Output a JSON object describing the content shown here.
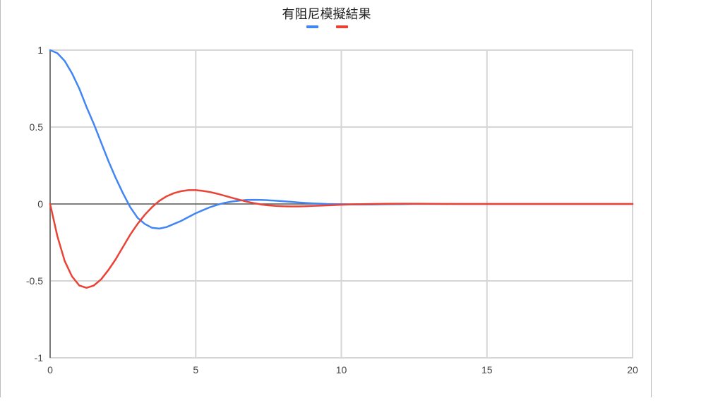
{
  "chart_data": {
    "type": "line",
    "title": "有阻尼模擬結果",
    "legend": "top-center",
    "grid": true,
    "xlim": [
      0,
      20
    ],
    "ylim": [
      -1,
      1
    ],
    "x_ticks": [
      "0",
      "5",
      "10",
      "15",
      "20"
    ],
    "y_ticks": [
      "1",
      "0.5",
      "0",
      "-0.5",
      "-1"
    ],
    "series": [
      {
        "color": "#4285f4",
        "x": [
          0,
          0.25,
          0.5,
          0.75,
          1,
          1.25,
          1.5,
          1.75,
          2,
          2.25,
          2.5,
          2.75,
          3,
          3.25,
          3.5,
          3.75,
          4,
          4.25,
          4.5,
          4.75,
          5,
          5.25,
          5.5,
          5.75,
          6,
          6.25,
          6.5,
          6.75,
          7,
          7.25,
          7.5,
          7.75,
          8,
          8.25,
          8.5,
          8.75,
          9,
          9.5,
          10,
          10.5,
          11,
          11.5,
          12,
          12.5,
          13,
          14,
          15,
          16,
          17,
          18,
          19,
          20
        ],
        "y": [
          1,
          0.98,
          0.93,
          0.85,
          0.75,
          0.63,
          0.52,
          0.4,
          0.28,
          0.17,
          0.07,
          -0.02,
          -0.09,
          -0.13,
          -0.155,
          -0.16,
          -0.15,
          -0.13,
          -0.11,
          -0.085,
          -0.06,
          -0.04,
          -0.02,
          -0.005,
          0.008,
          0.016,
          0.022,
          0.026,
          0.027,
          0.026,
          0.024,
          0.021,
          0.018,
          0.014,
          0.01,
          0.007,
          0.004,
          0,
          -0.002,
          -0.003,
          -0.003,
          -0.002,
          -0.001,
          0,
          0,
          0,
          0,
          0,
          0,
          0,
          0,
          0
        ]
      },
      {
        "color": "#ea4335",
        "x": [
          0,
          0.25,
          0.5,
          0.75,
          1,
          1.25,
          1.5,
          1.75,
          2,
          2.25,
          2.5,
          2.75,
          3,
          3.25,
          3.5,
          3.75,
          4,
          4.25,
          4.5,
          4.75,
          5,
          5.25,
          5.5,
          5.75,
          6,
          6.25,
          6.5,
          6.75,
          7,
          7.25,
          7.5,
          7.75,
          8,
          8.25,
          8.5,
          8.75,
          9,
          9.5,
          10,
          10.5,
          11,
          11.5,
          12,
          12.5,
          13,
          14,
          15,
          16,
          17,
          18,
          19,
          20
        ],
        "y": [
          0,
          -0.21,
          -0.37,
          -0.47,
          -0.53,
          -0.545,
          -0.53,
          -0.49,
          -0.43,
          -0.36,
          -0.28,
          -0.2,
          -0.13,
          -0.07,
          -0.02,
          0.02,
          0.05,
          0.07,
          0.083,
          0.09,
          0.09,
          0.085,
          0.077,
          0.066,
          0.053,
          0.04,
          0.027,
          0.015,
          0.005,
          -0.003,
          -0.009,
          -0.013,
          -0.015,
          -0.016,
          -0.016,
          -0.015,
          -0.013,
          -0.009,
          -0.005,
          -0.002,
          0,
          0.001,
          0.002,
          0.002,
          0.001,
          0,
          0,
          0,
          0,
          0,
          0,
          0
        ]
      }
    ]
  }
}
